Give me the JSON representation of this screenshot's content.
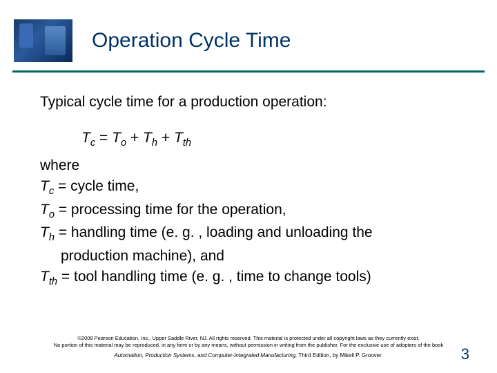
{
  "header": {
    "title": "Operation Cycle Time",
    "rule_color": "#006666",
    "title_color": "#003366"
  },
  "intro": "Typical cycle time for a production operation:",
  "formula": {
    "lhs_var": "T",
    "lhs_sub": "c",
    "eq": " = ",
    "t1_var": "T",
    "t1_sub": "o",
    "plus1": " + ",
    "t2_var": "T",
    "t2_sub": "h",
    "plus2": " + ",
    "t3_var": "T",
    "t3_sub": "th"
  },
  "defs": {
    "where": "where",
    "tc_var": "T",
    "tc_sub": "c",
    "tc_text": " = cycle time,",
    "to_var": "T",
    "to_sub": "o",
    "to_text": " = processing time for the operation,",
    "th_var": "T",
    "th_sub": "h",
    "th_text": " = handling time (e. g. , loading and unloading the",
    "th_text2": "production machine), and",
    "tth_var": "T",
    "tth_sub": "th",
    "tth_text": " = tool handling time (e. g. , time to change tools)"
  },
  "footer": {
    "copy1": "©2008 Pearson Education, Inc., Upper Saddle River, NJ. All rights reserved. This material is protected under all copyright laws as they currently exist.",
    "copy2": "No portion of this material may be reproduced, in any form or by any means, without permission in writing from the publisher. For the exclusive use of adopters of the book",
    "book": "Automation, Production Systems, and Computer-Integrated Manufacturing,",
    "edition": " Third Edition, by Mikell P. Groover."
  },
  "page_number": "3",
  "colors": {
    "background": "#ffffff",
    "text": "#000000",
    "pagenum": "#003366"
  }
}
